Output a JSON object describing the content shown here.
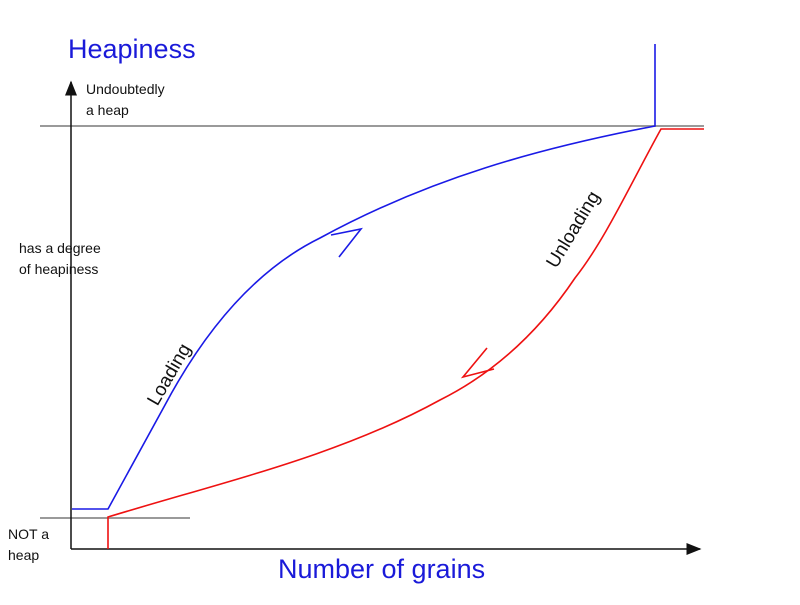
{
  "title": "Heapiness",
  "x_axis_label": "Number of grains",
  "levels": {
    "top_line1": "Undoubtedly",
    "top_line2": "a heap",
    "middle_line1": "has a degree",
    "middle_line2": "of heapiness",
    "bottom_line1": "NOT a",
    "bottom_line2": "heap"
  },
  "curves": {
    "loading_label": "Loading",
    "unloading_label": "Unloading"
  },
  "colors": {
    "loading": "#1a1ae6",
    "unloading": "#ee1111",
    "reference_lines": "#9a9a9a",
    "axes": "#111111",
    "title": "#1a1ad9"
  }
}
